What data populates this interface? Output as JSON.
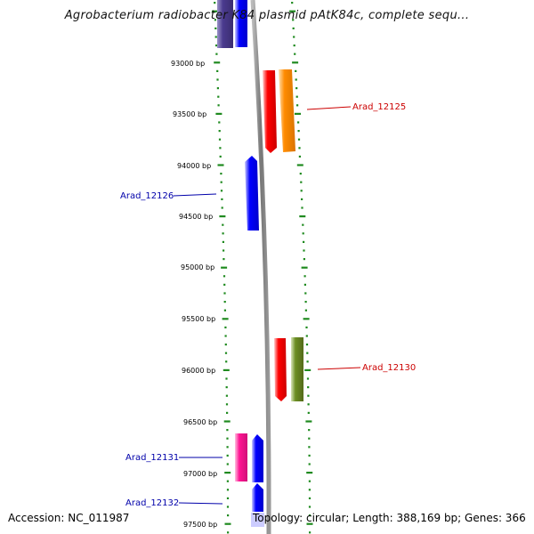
{
  "title": "Agrobacterium radiobacter K84 plasmid pAtK84c, complete sequ...",
  "footer": {
    "accession": "Accession: NC_011987",
    "topology": "Topology: circular; Length: 388,169 bp; Genes: 366"
  },
  "ticks": [
    "93000 bp",
    "93500 bp",
    "94000 bp",
    "94500 bp",
    "95000 bp",
    "95500 bp",
    "96000 bp",
    "96500 bp",
    "97000 bp",
    "97500 bp"
  ],
  "genes": [
    {
      "name": "Arad_12125",
      "color": "#cc0000"
    },
    {
      "name": "Arad_12126",
      "color": "#0000aa"
    },
    {
      "name": "Arad_12130",
      "color": "#cc0000"
    },
    {
      "name": "Arad_12131",
      "color": "#0000aa"
    },
    {
      "name": "Arad_12132",
      "color": "#0000aa"
    }
  ],
  "colors": {
    "backbone": "#888888",
    "tick_dash": "#1f8a1f",
    "blue_feature": "#0000ff",
    "red_feature": "#ff0000",
    "orange_feature": "#ff8c00",
    "olive_feature": "#6b8e23",
    "pink_feature": "#ff1493",
    "indigo_feature": "#4b3b8f"
  }
}
